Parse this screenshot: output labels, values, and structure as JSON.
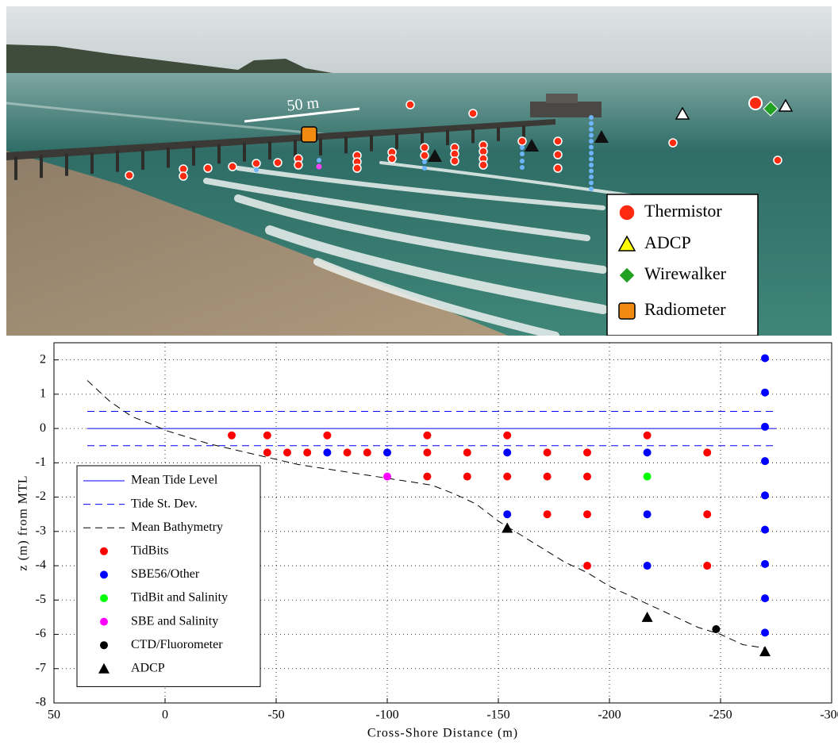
{
  "photo": {
    "scale_label": "50 m",
    "legend": [
      "Thermistor",
      "ADCP",
      "Wirewalker",
      "Radiometer"
    ]
  },
  "chart_data": {
    "type": "scatter",
    "xlabel": "Cross-Shore Distance (m)",
    "ylabel": "z (m) from MTL",
    "xlim": [
      50,
      -300
    ],
    "xticks": [
      50,
      0,
      -50,
      -100,
      -150,
      -200,
      -250,
      -300
    ],
    "ylim": [
      -8,
      2.5
    ],
    "yticks": [
      -8,
      -7,
      -6,
      -5,
      -4,
      -3,
      -2,
      -1,
      0,
      1,
      2
    ],
    "grid": true,
    "legend": "lower left",
    "series": [
      {
        "name": "Mean Tide Level",
        "type": "line",
        "color": "#0000ff",
        "dash": "solid",
        "x": [
          35,
          -275
        ],
        "values": [
          0,
          0
        ]
      },
      {
        "name": "Tide St. Dev.",
        "type": "line",
        "color": "#0000ff",
        "dash": "dashed",
        "x": [
          35,
          -275
        ],
        "values": [
          0.5,
          0.5
        ]
      },
      {
        "type": "line",
        "color": "#0000ff",
        "dash": "dashed",
        "x": [
          35,
          -275
        ],
        "values": [
          -0.5,
          -0.5
        ]
      },
      {
        "name": "Mean Bathymetry",
        "type": "line",
        "color": "#000000",
        "dash": "dashed",
        "x": [
          35,
          25,
          15,
          5,
          0,
          -10,
          -20,
          -30,
          -40,
          -50,
          -60,
          -70,
          -80,
          -90,
          -100,
          -110,
          -120,
          -130,
          -140,
          -150,
          -160,
          -170,
          -180,
          -190,
          -200,
          -210,
          -220,
          -230,
          -240,
          -250,
          -260,
          -270
        ],
        "values": [
          1.4,
          0.8,
          0.35,
          0.1,
          -0.05,
          -0.25,
          -0.45,
          -0.6,
          -0.75,
          -0.9,
          -1.05,
          -1.15,
          -1.25,
          -1.35,
          -1.45,
          -1.55,
          -1.65,
          -1.9,
          -2.2,
          -2.7,
          -3.1,
          -3.5,
          -3.9,
          -4.2,
          -4.6,
          -4.9,
          -5.2,
          -5.5,
          -5.8,
          -6.0,
          -6.3,
          -6.4
        ]
      },
      {
        "name": "TidBits",
        "type": "scatter",
        "marker": "circle",
        "color": "#ff0000",
        "x": [
          -30,
          -46,
          -73,
          -118,
          -154,
          -217,
          -46,
          -55,
          -64,
          -82,
          -91,
          -118,
          -136,
          -172,
          -190,
          -244,
          -118,
          -136,
          -154,
          -172,
          -190,
          -172,
          -190,
          -244,
          -190,
          -244
        ],
        "values": [
          -0.2,
          -0.2,
          -0.2,
          -0.2,
          -0.2,
          -0.2,
          -0.7,
          -0.7,
          -0.7,
          -0.7,
          -0.7,
          -0.7,
          -0.7,
          -0.7,
          -0.7,
          -0.7,
          -1.4,
          -1.4,
          -1.4,
          -1.4,
          -1.4,
          -2.5,
          -2.5,
          -2.5,
          -4,
          -4
        ]
      },
      {
        "name": "SBE56/Other",
        "type": "scatter",
        "marker": "circle",
        "color": "#0000ff",
        "x": [
          -73,
          -100,
          -154,
          -217,
          -154,
          -217,
          -217,
          -270,
          -270,
          -270,
          -270,
          -270,
          -270,
          -270,
          -270,
          -270
        ],
        "values": [
          -0.7,
          -0.7,
          -0.7,
          -0.7,
          -2.5,
          -2.5,
          -4,
          2.05,
          1.05,
          0.05,
          -0.95,
          -1.95,
          -2.95,
          -3.95,
          -4.95,
          -5.95
        ]
      },
      {
        "name": "TidBit and Salinity",
        "type": "scatter",
        "marker": "circle",
        "color": "#00ff00",
        "x": [
          -217
        ],
        "values": [
          -1.4
        ]
      },
      {
        "name": "SBE and Salinity",
        "type": "scatter",
        "marker": "circle",
        "color": "#ff00ff",
        "x": [
          -100
        ],
        "values": [
          -1.4
        ]
      },
      {
        "name": "CTD/Fluorometer",
        "type": "scatter",
        "marker": "circle",
        "color": "#000000",
        "x": [
          -248
        ],
        "values": [
          -5.85
        ]
      },
      {
        "name": "ADCP",
        "type": "scatter",
        "marker": "triangle",
        "color": "#000000",
        "x": [
          -154,
          -217,
          -270
        ],
        "values": [
          -2.9,
          -5.5,
          -6.5
        ]
      }
    ]
  }
}
